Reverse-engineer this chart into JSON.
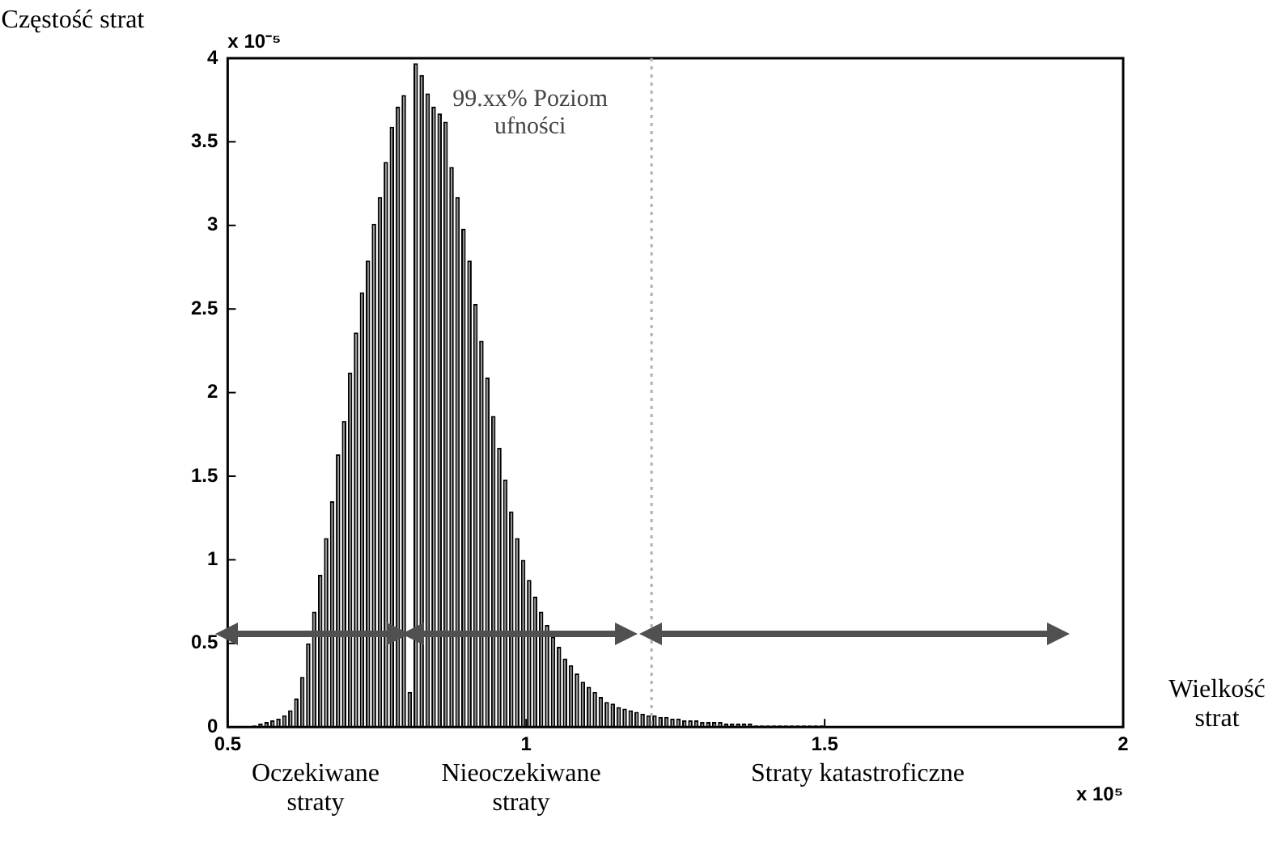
{
  "chart_data": {
    "type": "histogram",
    "ylabel": "Częstość strat",
    "xlabel": "Wielkość strat",
    "bins": [
      0.54,
      0.55,
      0.56,
      0.57,
      0.58,
      0.59,
      0.6,
      0.61,
      0.62,
      0.63,
      0.64,
      0.65,
      0.66,
      0.67,
      0.68,
      0.69,
      0.7,
      0.71,
      0.72,
      0.73,
      0.74,
      0.75,
      0.76,
      0.77,
      0.78,
      0.79,
      0.8,
      0.81,
      0.82,
      0.83,
      0.84,
      0.85,
      0.86,
      0.87,
      0.88,
      0.89,
      0.9,
      0.91,
      0.92,
      0.93,
      0.94,
      0.95,
      0.96,
      0.97,
      0.98,
      0.99,
      1.0,
      1.01,
      1.02,
      1.03,
      1.04,
      1.05,
      1.06,
      1.07,
      1.08,
      1.09,
      1.1,
      1.11,
      1.12,
      1.13,
      1.14,
      1.15,
      1.16,
      1.17,
      1.18,
      1.19,
      1.2,
      1.21,
      1.22,
      1.23,
      1.24,
      1.25,
      1.26,
      1.27,
      1.28,
      1.29,
      1.3,
      1.31,
      1.32,
      1.33,
      1.34,
      1.35,
      1.36,
      1.37,
      1.38,
      1.39,
      1.4,
      1.41,
      1.42,
      1.43,
      1.44,
      1.45,
      1.46,
      1.47,
      1.48,
      1.49,
      1.5
    ],
    "values": [
      0.01,
      0.02,
      0.03,
      0.04,
      0.05,
      0.07,
      0.1,
      0.17,
      0.3,
      0.5,
      0.69,
      0.91,
      1.13,
      1.35,
      1.63,
      1.83,
      2.12,
      2.36,
      2.6,
      2.79,
      3.01,
      3.17,
      3.38,
      3.59,
      3.71,
      3.78,
      0.21,
      3.97,
      3.9,
      3.79,
      3.71,
      3.67,
      3.62,
      3.35,
      3.17,
      2.98,
      2.79,
      2.53,
      2.31,
      2.09,
      1.86,
      1.67,
      1.48,
      1.29,
      1.13,
      1.0,
      0.88,
      0.78,
      0.69,
      0.61,
      0.54,
      0.48,
      0.41,
      0.37,
      0.32,
      0.27,
      0.24,
      0.21,
      0.18,
      0.15,
      0.14,
      0.12,
      0.11,
      0.1,
      0.09,
      0.08,
      0.07,
      0.07,
      0.06,
      0.06,
      0.05,
      0.05,
      0.04,
      0.04,
      0.04,
      0.03,
      0.03,
      0.03,
      0.03,
      0.02,
      0.02,
      0.02,
      0.02,
      0.02,
      0.01,
      0.01,
      0.01,
      0.01,
      0.01,
      0.01,
      0.01,
      0.01,
      0.01,
      0.01,
      0.01,
      0.01
    ],
    "color": "#8c8c8c",
    "xlim": [
      0.5,
      2
    ],
    "xticks": [
      0.5,
      1,
      1.5,
      2
    ],
    "ylim": [
      0,
      4
    ],
    "yticks": [
      0,
      0.5,
      1,
      1.5,
      2,
      2.5,
      3,
      3.5,
      4
    ],
    "ref_lines": [
      {
        "axis": "x",
        "value": 1.21,
        "label": "99.xx% Poziom ufności",
        "color": "#b0b0b0",
        "line_style": "dotted"
      }
    ],
    "annotations": [
      "x 10⁻⁵",
      "x 10⁵",
      "Oczekiwane straty",
      "Nieoczekiwane straty",
      "Straty katastroficzne"
    ],
    "grid": false,
    "legend": false
  }
}
